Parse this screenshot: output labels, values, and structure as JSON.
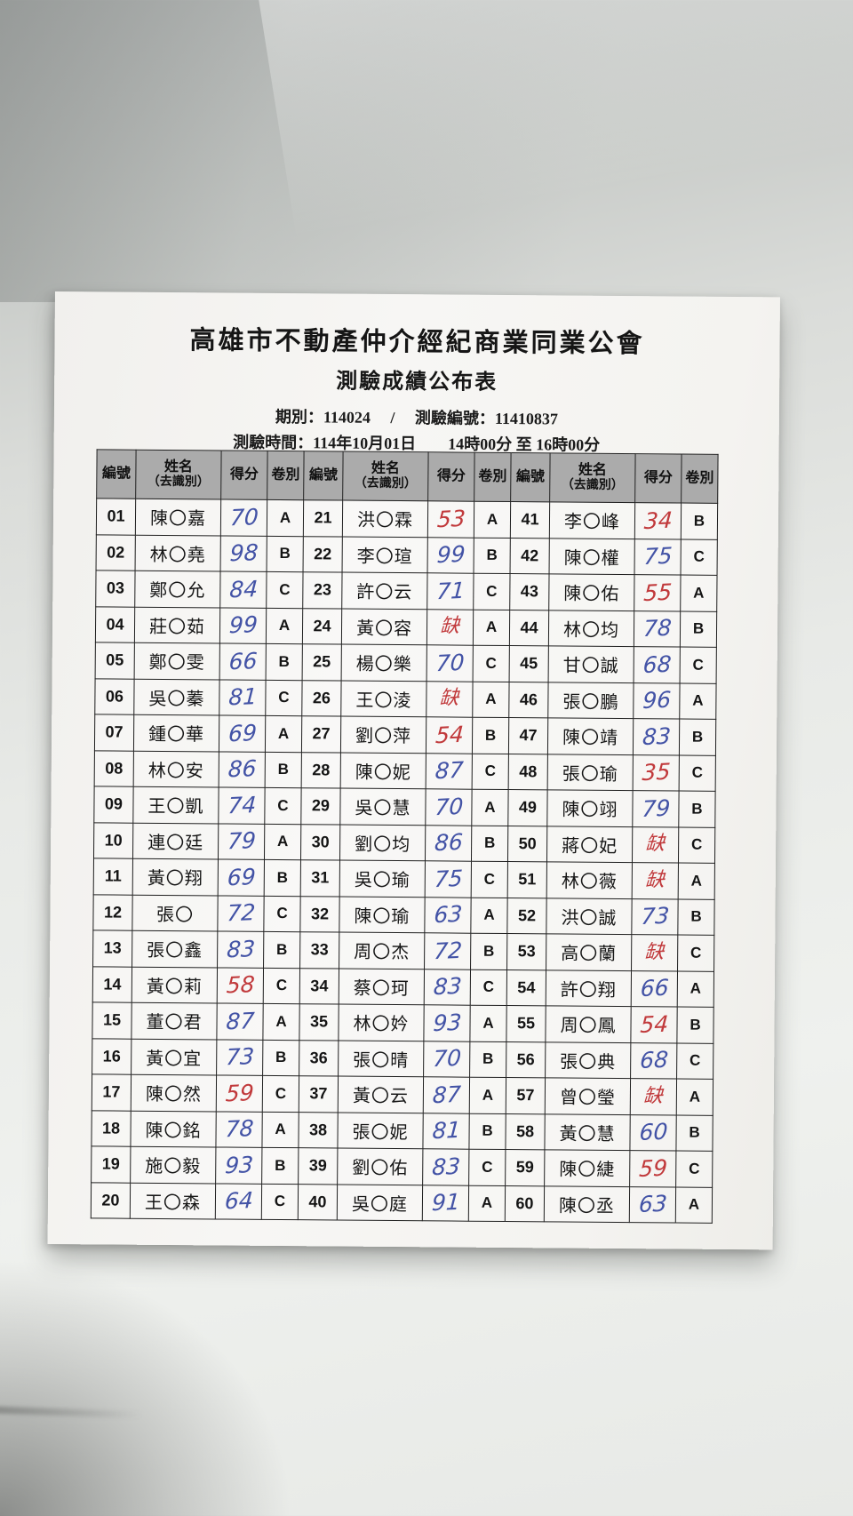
{
  "document": {
    "org_title": "高雄市不動產仲介經紀商業同業公會",
    "doc_title": "測驗成績公布表",
    "meta_line1": "期別：114024　 / 　測驗編號：11410837",
    "meta_line2": "測驗時間：114年10月01日　　14時00分 至 16時00分"
  },
  "colors": {
    "ink_blue": "#4353a6",
    "ink_red": "#c13a3c",
    "header_bg": "#ababab"
  },
  "table": {
    "columns": {
      "no": "編號",
      "name_line1": "姓名",
      "name_line2": "（去識別）",
      "score": "得分",
      "paper": "卷別"
    },
    "groups": 3,
    "rows_per_group": 20,
    "entries": [
      {
        "no": "01",
        "name": "陳〇嘉",
        "score": "70",
        "paper": "A",
        "ink": "blue"
      },
      {
        "no": "02",
        "name": "林〇堯",
        "score": "98",
        "paper": "B",
        "ink": "blue"
      },
      {
        "no": "03",
        "name": "鄭〇允",
        "score": "84",
        "paper": "C",
        "ink": "blue"
      },
      {
        "no": "04",
        "name": "莊〇茹",
        "score": "99",
        "paper": "A",
        "ink": "blue"
      },
      {
        "no": "05",
        "name": "鄭〇雯",
        "score": "66",
        "paper": "B",
        "ink": "blue"
      },
      {
        "no": "06",
        "name": "吳〇蓁",
        "score": "81",
        "paper": "C",
        "ink": "blue"
      },
      {
        "no": "07",
        "name": "鍾〇華",
        "score": "69",
        "paper": "A",
        "ink": "blue"
      },
      {
        "no": "08",
        "name": "林〇安",
        "score": "86",
        "paper": "B",
        "ink": "blue"
      },
      {
        "no": "09",
        "name": "王〇凱",
        "score": "74",
        "paper": "C",
        "ink": "blue"
      },
      {
        "no": "10",
        "name": "連〇廷",
        "score": "79",
        "paper": "A",
        "ink": "blue"
      },
      {
        "no": "11",
        "name": "黃〇翔",
        "score": "69",
        "paper": "B",
        "ink": "blue"
      },
      {
        "no": "12",
        "name": "張〇",
        "score": "72",
        "paper": "C",
        "ink": "blue"
      },
      {
        "no": "13",
        "name": "張〇鑫",
        "score": "83",
        "paper": "B",
        "ink": "blue"
      },
      {
        "no": "14",
        "name": "黃〇莉",
        "score": "58",
        "paper": "C",
        "ink": "red"
      },
      {
        "no": "15",
        "name": "董〇君",
        "score": "87",
        "paper": "A",
        "ink": "blue"
      },
      {
        "no": "16",
        "name": "黃〇宜",
        "score": "73",
        "paper": "B",
        "ink": "blue"
      },
      {
        "no": "17",
        "name": "陳〇然",
        "score": "59",
        "paper": "C",
        "ink": "red"
      },
      {
        "no": "18",
        "name": "陳〇銘",
        "score": "78",
        "paper": "A",
        "ink": "blue"
      },
      {
        "no": "19",
        "name": "施〇毅",
        "score": "93",
        "paper": "B",
        "ink": "blue"
      },
      {
        "no": "20",
        "name": "王〇森",
        "score": "64",
        "paper": "C",
        "ink": "blue"
      },
      {
        "no": "21",
        "name": "洪〇霖",
        "score": "53",
        "paper": "A",
        "ink": "red"
      },
      {
        "no": "22",
        "name": "李〇瑄",
        "score": "99",
        "paper": "B",
        "ink": "blue"
      },
      {
        "no": "23",
        "name": "許〇云",
        "score": "71",
        "paper": "C",
        "ink": "blue"
      },
      {
        "no": "24",
        "name": "黃〇容",
        "score": "缺",
        "paper": "A",
        "ink": "red"
      },
      {
        "no": "25",
        "name": "楊〇樂",
        "score": "70",
        "paper": "C",
        "ink": "blue"
      },
      {
        "no": "26",
        "name": "王〇淩",
        "score": "缺",
        "paper": "A",
        "ink": "red"
      },
      {
        "no": "27",
        "name": "劉〇萍",
        "score": "54",
        "paper": "B",
        "ink": "red"
      },
      {
        "no": "28",
        "name": "陳〇妮",
        "score": "87",
        "paper": "C",
        "ink": "blue"
      },
      {
        "no": "29",
        "name": "吳〇慧",
        "score": "70",
        "paper": "A",
        "ink": "blue"
      },
      {
        "no": "30",
        "name": "劉〇均",
        "score": "86",
        "paper": "B",
        "ink": "blue"
      },
      {
        "no": "31",
        "name": "吳〇瑜",
        "score": "75",
        "paper": "C",
        "ink": "blue"
      },
      {
        "no": "32",
        "name": "陳〇瑜",
        "score": "63",
        "paper": "A",
        "ink": "blue"
      },
      {
        "no": "33",
        "name": "周〇杰",
        "score": "72",
        "paper": "B",
        "ink": "blue"
      },
      {
        "no": "34",
        "name": "蔡〇珂",
        "score": "83",
        "paper": "C",
        "ink": "blue"
      },
      {
        "no": "35",
        "name": "林〇妗",
        "score": "93",
        "paper": "A",
        "ink": "blue"
      },
      {
        "no": "36",
        "name": "張〇晴",
        "score": "70",
        "paper": "B",
        "ink": "blue"
      },
      {
        "no": "37",
        "name": "黃〇云",
        "score": "87",
        "paper": "A",
        "ink": "blue"
      },
      {
        "no": "38",
        "name": "張〇妮",
        "score": "81",
        "paper": "B",
        "ink": "blue"
      },
      {
        "no": "39",
        "name": "劉〇佑",
        "score": "83",
        "paper": "C",
        "ink": "blue"
      },
      {
        "no": "40",
        "name": "吳〇庭",
        "score": "91",
        "paper": "A",
        "ink": "blue"
      },
      {
        "no": "41",
        "name": "李〇峰",
        "score": "34",
        "paper": "B",
        "ink": "red"
      },
      {
        "no": "42",
        "name": "陳〇權",
        "score": "75",
        "paper": "C",
        "ink": "blue"
      },
      {
        "no": "43",
        "name": "陳〇佑",
        "score": "55",
        "paper": "A",
        "ink": "red"
      },
      {
        "no": "44",
        "name": "林〇均",
        "score": "78",
        "paper": "B",
        "ink": "blue"
      },
      {
        "no": "45",
        "name": "甘〇誠",
        "score": "68",
        "paper": "C",
        "ink": "blue"
      },
      {
        "no": "46",
        "name": "張〇鵬",
        "score": "96",
        "paper": "A",
        "ink": "blue"
      },
      {
        "no": "47",
        "name": "陳〇靖",
        "score": "83",
        "paper": "B",
        "ink": "blue"
      },
      {
        "no": "48",
        "name": "張〇瑜",
        "score": "35",
        "paper": "C",
        "ink": "red"
      },
      {
        "no": "49",
        "name": "陳〇翊",
        "score": "79",
        "paper": "B",
        "ink": "blue"
      },
      {
        "no": "50",
        "name": "蔣〇妃",
        "score": "缺",
        "paper": "C",
        "ink": "red"
      },
      {
        "no": "51",
        "name": "林〇薇",
        "score": "缺",
        "paper": "A",
        "ink": "red"
      },
      {
        "no": "52",
        "name": "洪〇誠",
        "score": "73",
        "paper": "B",
        "ink": "blue"
      },
      {
        "no": "53",
        "name": "高〇蘭",
        "score": "缺",
        "paper": "C",
        "ink": "red"
      },
      {
        "no": "54",
        "name": "許〇翔",
        "score": "66",
        "paper": "A",
        "ink": "blue"
      },
      {
        "no": "55",
        "name": "周〇鳳",
        "score": "54",
        "paper": "B",
        "ink": "red"
      },
      {
        "no": "56",
        "name": "張〇典",
        "score": "68",
        "paper": "C",
        "ink": "blue"
      },
      {
        "no": "57",
        "name": "曾〇瑩",
        "score": "缺",
        "paper": "A",
        "ink": "red"
      },
      {
        "no": "58",
        "name": "黃〇慧",
        "score": "60",
        "paper": "B",
        "ink": "blue"
      },
      {
        "no": "59",
        "name": "陳〇緁",
        "score": "59",
        "paper": "C",
        "ink": "red"
      },
      {
        "no": "60",
        "name": "陳〇丞",
        "score": "63",
        "paper": "A",
        "ink": "blue"
      }
    ]
  }
}
